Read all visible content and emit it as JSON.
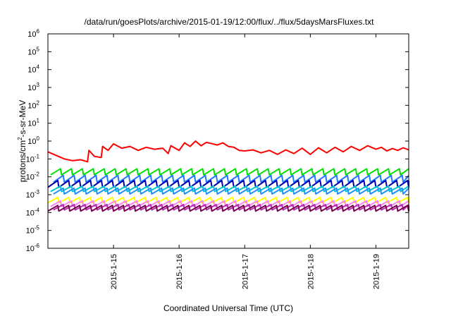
{
  "chart_data": {
    "type": "line",
    "title": "/data/run/goesPlots/archive/2015-01-19/12:00/flux/../flux/5daysMarsFluxes.txt",
    "xlabel": "Coordinated Universal Time (UTC)",
    "ylabel": "protons/cm2-s-sr-MeV",
    "ylabel_parts": {
      "pre": "protons/cm",
      "sup": "2",
      "post": "-s-sr-MeV"
    },
    "y_scale": "log",
    "ylim": [
      1e-06,
      1000000.0
    ],
    "y_ticks": [
      {
        "base": "10",
        "exp": "6",
        "value": 1000000.0
      },
      {
        "base": "10",
        "exp": "5",
        "value": 100000.0
      },
      {
        "base": "10",
        "exp": "4",
        "value": 10000.0
      },
      {
        "base": "10",
        "exp": "3",
        "value": 1000.0
      },
      {
        "base": "10",
        "exp": "2",
        "value": 100.0
      },
      {
        "base": "10",
        "exp": "1",
        "value": 10.0
      },
      {
        "base": "10",
        "exp": "0",
        "value": 1.0
      },
      {
        "base": "10",
        "exp": "-1",
        "value": 0.1
      },
      {
        "base": "10",
        "exp": "-2",
        "value": 0.01
      },
      {
        "base": "10",
        "exp": "-3",
        "value": 0.001
      },
      {
        "base": "10",
        "exp": "-4",
        "value": 0.0001
      },
      {
        "base": "10",
        "exp": "-5",
        "value": 1e-05
      },
      {
        "base": "10",
        "exp": "-6",
        "value": 1e-06
      }
    ],
    "xlim": [
      "2015-01-14T00:00",
      "2015-01-19T12:00"
    ],
    "x_ticks": [
      {
        "label": "2015-1-15",
        "value": "2015-01-15T00:00"
      },
      {
        "label": "2015-1-16",
        "value": "2015-01-16T00:00"
      },
      {
        "label": "2015-1-17",
        "value": "2015-01-17T00:00"
      },
      {
        "label": "2015-1-18",
        "value": "2015-01-18T00:00"
      },
      {
        "label": "2015-1-19",
        "value": "2015-01-19T00:00"
      }
    ],
    "grid": false,
    "legend": "none",
    "series": [
      {
        "color": "#ff0000",
        "points": [
          [
            "2015-01-14T00:00",
            0.25
          ],
          [
            "2015-01-14T06:00",
            0.1
          ],
          [
            "2015-01-14T09:00",
            0.08
          ],
          [
            "2015-01-14T12:00",
            0.09
          ],
          [
            "2015-01-14T14:30",
            0.07
          ],
          [
            "2015-01-14T15:00",
            0.3
          ],
          [
            "2015-01-14T17:00",
            0.14
          ],
          [
            "2015-01-14T19:30",
            0.12
          ],
          [
            "2015-01-14T20:00",
            0.5
          ],
          [
            "2015-01-14T22:00",
            0.3
          ],
          [
            "2015-01-15T00:00",
            0.7
          ],
          [
            "2015-01-15T03:00",
            0.4
          ],
          [
            "2015-01-15T06:00",
            0.5
          ],
          [
            "2015-01-15T09:00",
            0.3
          ],
          [
            "2015-01-15T12:00",
            0.45
          ],
          [
            "2015-01-15T15:00",
            0.35
          ],
          [
            "2015-01-15T18:00",
            0.4
          ],
          [
            "2015-01-15T20:00",
            0.2
          ],
          [
            "2015-01-15T21:00",
            0.55
          ],
          [
            "2015-01-16T00:00",
            0.3
          ],
          [
            "2015-01-16T02:00",
            0.8
          ],
          [
            "2015-01-16T04:00",
            0.5
          ],
          [
            "2015-01-16T06:00",
            1.0
          ],
          [
            "2015-01-16T08:00",
            0.55
          ],
          [
            "2015-01-16T10:00",
            0.85
          ],
          [
            "2015-01-16T14:00",
            0.6
          ],
          [
            "2015-01-16T16:00",
            0.8
          ],
          [
            "2015-01-16T18:00",
            0.5
          ],
          [
            "2015-01-16T20:00",
            0.45
          ],
          [
            "2015-01-16T22:00",
            0.3
          ],
          [
            "2015-01-17T00:00",
            0.28
          ],
          [
            "2015-01-17T03:00",
            0.32
          ],
          [
            "2015-01-17T06:00",
            0.22
          ],
          [
            "2015-01-17T09:00",
            0.3
          ],
          [
            "2015-01-17T12:00",
            0.18
          ],
          [
            "2015-01-17T15:00",
            0.32
          ],
          [
            "2015-01-17T18:00",
            0.2
          ],
          [
            "2015-01-17T21:00",
            0.4
          ],
          [
            "2015-01-18T00:00",
            0.18
          ],
          [
            "2015-01-18T03:00",
            0.42
          ],
          [
            "2015-01-18T06:00",
            0.22
          ],
          [
            "2015-01-18T09:00",
            0.45
          ],
          [
            "2015-01-18T12:00",
            0.25
          ],
          [
            "2015-01-18T15:00",
            0.5
          ],
          [
            "2015-01-18T18:00",
            0.3
          ],
          [
            "2015-01-18T21:00",
            0.55
          ],
          [
            "2015-01-19T00:00",
            0.35
          ],
          [
            "2015-01-19T02:00",
            0.45
          ],
          [
            "2015-01-19T04:00",
            0.28
          ],
          [
            "2015-01-19T06:00",
            0.38
          ],
          [
            "2015-01-19T08:00",
            0.3
          ],
          [
            "2015-01-19T10:00",
            0.42
          ],
          [
            "2015-01-19T12:00",
            0.32
          ]
        ]
      },
      {
        "color": "#00e000",
        "range": [
          0.013,
          0.028
        ]
      },
      {
        "color": "#1e78ff",
        "range": [
          0.005,
          0.012
        ]
      },
      {
        "color": "#0000b0",
        "range": [
          0.0026,
          0.0062
        ]
      },
      {
        "color": "#00c8c8",
        "range": [
          0.0015,
          0.003
        ]
      },
      {
        "color": "#1e90ff",
        "range": [
          0.0011,
          0.0023
        ]
      },
      {
        "color": "#ffff00",
        "range": [
          0.00035,
          0.0007
        ]
      },
      {
        "color": "#ff80ff",
        "range": [
          0.00022,
          0.00045
        ]
      },
      {
        "color": "#b030b0",
        "range": [
          0.00014,
          0.00028
        ]
      },
      {
        "color": "#800050",
        "range": [
          0.00012,
          0.00025
        ]
      }
    ]
  }
}
